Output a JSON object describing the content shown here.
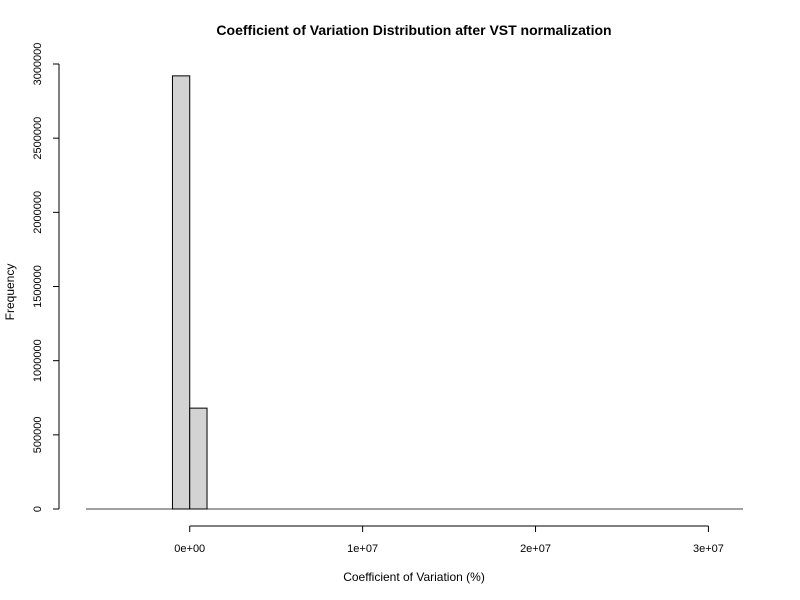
{
  "chart_data": {
    "type": "bar",
    "title": "Coefficient of Variation Distribution after VST normalization",
    "xlabel": "Coefficient of Variation (%)",
    "ylabel": "Frequency",
    "xlim": [
      -6000000,
      32000000
    ],
    "ylim": [
      0,
      3000000
    ],
    "x_ticks": [
      {
        "value": 0,
        "label": "0e+00"
      },
      {
        "value": 10000000,
        "label": "1e+07"
      },
      {
        "value": 20000000,
        "label": "2e+07"
      },
      {
        "value": 30000000,
        "label": "3e+07"
      }
    ],
    "y_ticks": [
      {
        "value": 0,
        "label": "0"
      },
      {
        "value": 500000,
        "label": "500000"
      },
      {
        "value": 1000000,
        "label": "1000000"
      },
      {
        "value": 1500000,
        "label": "1500000"
      },
      {
        "value": 2000000,
        "label": "2000000"
      },
      {
        "value": 2500000,
        "label": "2500000"
      },
      {
        "value": 3000000,
        "label": "3000000"
      }
    ],
    "bin_width": 1000000,
    "bins": [
      {
        "x0": -1000000,
        "x1": 0,
        "count": 2920000
      },
      {
        "x0": 0,
        "x1": 1000000,
        "count": 680000
      }
    ],
    "baseline_range": [
      -6000000,
      32000000
    ],
    "bar_fill": "#d3d3d3",
    "line_color": "#000000"
  }
}
